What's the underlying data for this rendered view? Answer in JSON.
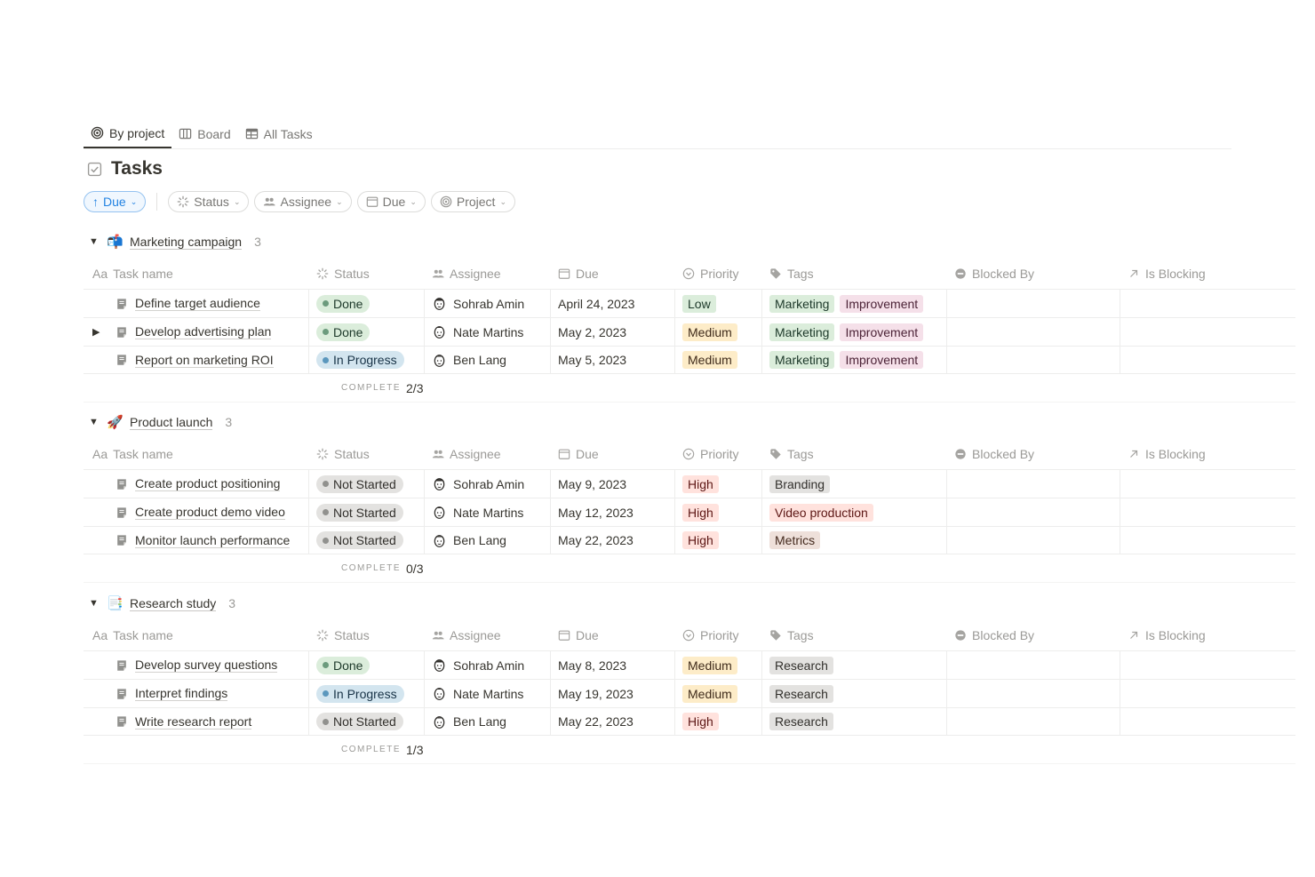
{
  "tabs": [
    {
      "label": "By project",
      "icon": "target-icon",
      "active": true
    },
    {
      "label": "Board",
      "icon": "board-icon",
      "active": false
    },
    {
      "label": "All Tasks",
      "icon": "table-icon",
      "active": false
    }
  ],
  "title": "Tasks",
  "filters": {
    "sort_label": "Due",
    "status_label": "Status",
    "assignee_label": "Assignee",
    "due_label": "Due",
    "project_label": "Project"
  },
  "columns": {
    "name": "Task name",
    "status": "Status",
    "assignee": "Assignee",
    "due": "Due",
    "priority": "Priority",
    "tags": "Tags",
    "blocked_by": "Blocked By",
    "is_blocking": "Is Blocking",
    "name_prefix": "Aa"
  },
  "complete_label": "COMPLETE",
  "groups": [
    {
      "emoji": "📬",
      "name": "Marketing campaign",
      "count": "3",
      "complete": "2/3",
      "tasks": [
        {
          "name": "Define target audience",
          "status": "Done",
          "assignee": "Sohrab Amin",
          "due": "April 24, 2023",
          "priority": "Low",
          "tags": [
            "Marketing",
            "Improvement"
          ],
          "expandable": false
        },
        {
          "name": "Develop advertising plan",
          "status": "Done",
          "assignee": "Nate Martins",
          "due": "May 2, 2023",
          "priority": "Medium",
          "tags": [
            "Marketing",
            "Improvement"
          ],
          "expandable": true
        },
        {
          "name": "Report on marketing ROI",
          "status": "In Progress",
          "assignee": "Ben Lang",
          "due": "May 5, 2023",
          "priority": "Medium",
          "tags": [
            "Marketing",
            "Improvement"
          ],
          "expandable": false
        }
      ]
    },
    {
      "emoji": "🚀",
      "name": "Product launch",
      "count": "3",
      "complete": "0/3",
      "tasks": [
        {
          "name": "Create product positioning",
          "status": "Not Started",
          "assignee": "Sohrab Amin",
          "due": "May 9, 2023",
          "priority": "High",
          "tags": [
            "Branding"
          ],
          "expandable": false
        },
        {
          "name": "Create product demo video",
          "status": "Not Started",
          "assignee": "Nate Martins",
          "due": "May 12, 2023",
          "priority": "High",
          "tags": [
            "Video production"
          ],
          "expandable": false
        },
        {
          "name": "Monitor launch performance",
          "status": "Not Started",
          "assignee": "Ben Lang",
          "due": "May 22, 2023",
          "priority": "High",
          "tags": [
            "Metrics"
          ],
          "expandable": false
        }
      ]
    },
    {
      "emoji": "📑",
      "name": "Research study",
      "count": "3",
      "complete": "1/3",
      "tasks": [
        {
          "name": "Develop survey questions",
          "status": "Done",
          "assignee": "Sohrab Amin",
          "due": "May 8, 2023",
          "priority": "Medium",
          "tags": [
            "Research"
          ],
          "expandable": false
        },
        {
          "name": "Interpret findings",
          "status": "In Progress",
          "assignee": "Nate Martins",
          "due": "May 19, 2023",
          "priority": "Medium",
          "tags": [
            "Research"
          ],
          "expandable": false
        },
        {
          "name": "Write research report",
          "status": "Not Started",
          "assignee": "Ben Lang",
          "due": "May 22, 2023",
          "priority": "High",
          "tags": [
            "Research"
          ],
          "expandable": false
        }
      ]
    }
  ]
}
